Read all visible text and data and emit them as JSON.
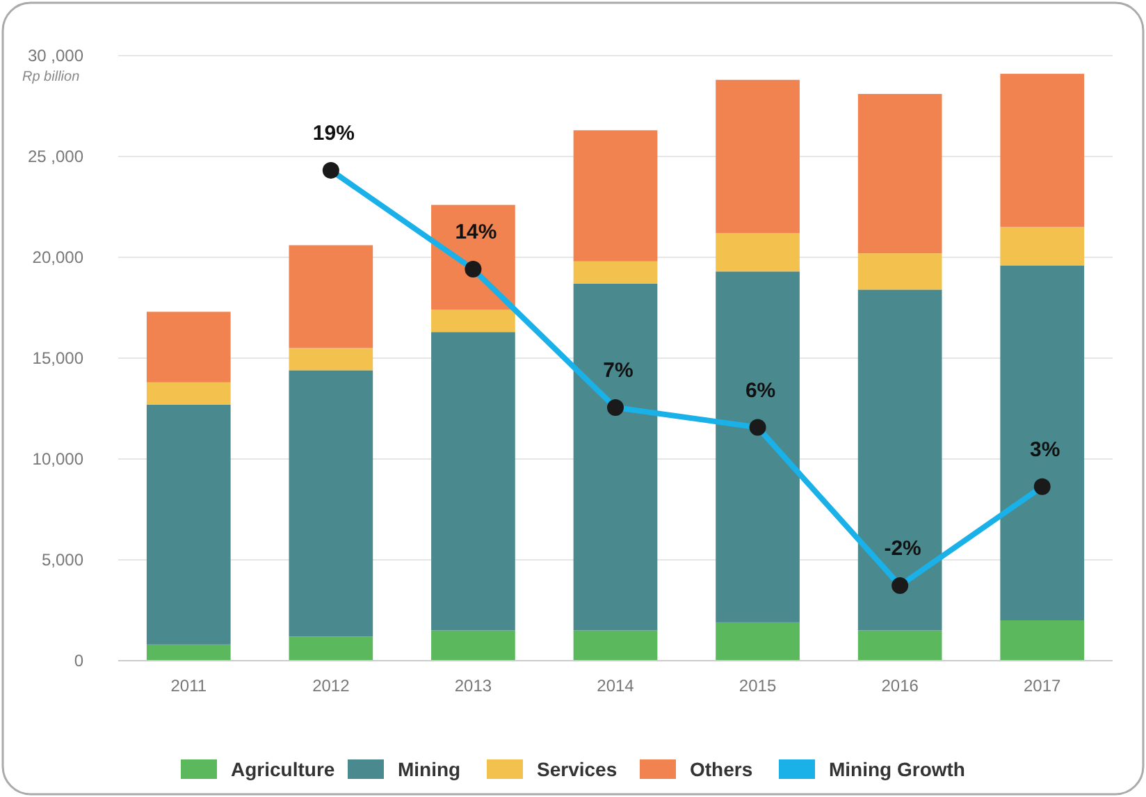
{
  "chart_data": {
    "type": "bar",
    "stacked": true,
    "ylabel": "Rp billion",
    "categories": [
      "2011",
      "2012",
      "2013",
      "2014",
      "2015",
      "2016",
      "2017"
    ],
    "ylim": [
      0,
      30000
    ],
    "yticks": [
      0,
      {
        "value": 5000,
        "label": "5,000"
      },
      {
        "value": 10000,
        "label": "10,000"
      },
      {
        "value": 15000,
        "label": "15,000"
      },
      {
        "value": 20000,
        "label": "20,000"
      },
      {
        "value": 25000,
        "label": "25 ,000"
      },
      {
        "value": 30000,
        "label": "30 ,000"
      }
    ],
    "y2lim": [
      -5.8,
      24.8
    ],
    "tick_labels": "xy",
    "grid": "y",
    "legend": "bottom",
    "marker": "circle",
    "series": [
      {
        "name": "Agriculture",
        "color": "#5cb85c",
        "values": [
          800,
          1200,
          1500,
          1500,
          1900,
          1500,
          2000
        ]
      },
      {
        "name": "Mining",
        "color": "#4a8a8f",
        "values": [
          11900,
          13200,
          14800,
          17200,
          17400,
          16900,
          17600
        ]
      },
      {
        "name": "Services",
        "color": "#f2c14e",
        "values": [
          1100,
          1100,
          1100,
          1100,
          1900,
          1800,
          1900
        ]
      },
      {
        "name": "Others",
        "color": "#f0834f",
        "values": [
          3500,
          5100,
          5200,
          6500,
          7600,
          7900,
          7600
        ]
      },
      {
        "name": "Mining Growth",
        "type": "line",
        "axis": "y2",
        "color": "#1ab0e8",
        "values": [
          null,
          19,
          14,
          7,
          6,
          -2,
          3
        ],
        "value_labels": [
          null,
          "19%",
          "14%",
          "7%",
          "6%",
          "-2%",
          "3%"
        ]
      }
    ]
  }
}
